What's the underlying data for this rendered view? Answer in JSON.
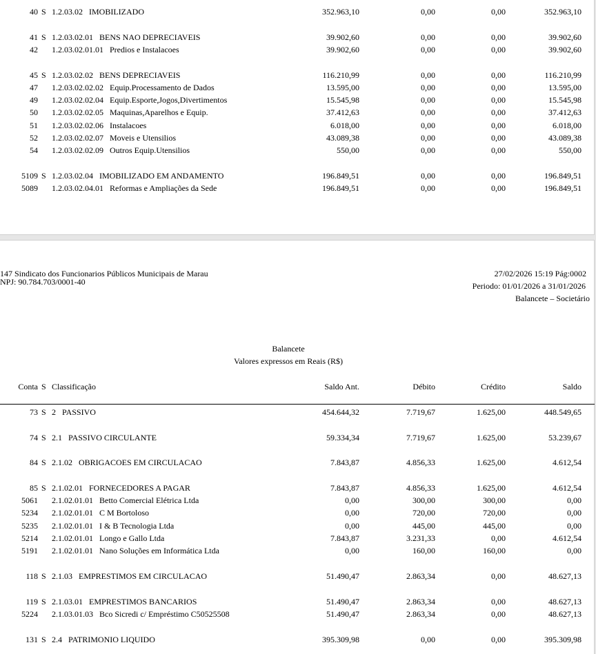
{
  "page1": {
    "rows": [
      {
        "conta": "40",
        "s": "S",
        "classificacao": "1.2.03.02",
        "descricao": "IMOBILIZADO",
        "saldo_ant": "352.963,10",
        "debito": "0,00",
        "credito": "0,00",
        "saldo": "352.963,10"
      },
      {
        "conta": "41",
        "s": "S",
        "classificacao": "1.2.03.02.01",
        "descricao": "BENS NAO DEPRECIAVEIS",
        "saldo_ant": "39.902,60",
        "debito": "0,00",
        "credito": "0,00",
        "saldo": "39.902,60"
      },
      {
        "conta": "42",
        "s": "",
        "classificacao": "1.2.03.02.01.01",
        "descricao": "Predios e Instalacoes",
        "saldo_ant": "39.902,60",
        "debito": "0,00",
        "credito": "0,00",
        "saldo": "39.902,60"
      },
      {
        "conta": "45",
        "s": "S",
        "classificacao": "1.2.03.02.02",
        "descricao": "BENS DEPRECIAVEIS",
        "saldo_ant": "116.210,99",
        "debito": "0,00",
        "credito": "0,00",
        "saldo": "116.210,99"
      },
      {
        "conta": "47",
        "s": "",
        "classificacao": "1.2.03.02.02.02",
        "descricao": "Equip.Processamento de Dados",
        "saldo_ant": "13.595,00",
        "debito": "0,00",
        "credito": "0,00",
        "saldo": "13.595,00"
      },
      {
        "conta": "49",
        "s": "",
        "classificacao": "1.2.03.02.02.04",
        "descricao": "Equip.Esporte,Jogos,Divertimentos",
        "saldo_ant": "15.545,98",
        "debito": "0,00",
        "credito": "0,00",
        "saldo": "15.545,98"
      },
      {
        "conta": "50",
        "s": "",
        "classificacao": "1.2.03.02.02.05",
        "descricao": "Maquinas,Aparelhos e Equip.",
        "saldo_ant": "37.412,63",
        "debito": "0,00",
        "credito": "0,00",
        "saldo": "37.412,63"
      },
      {
        "conta": "51",
        "s": "",
        "classificacao": "1.2.03.02.02.06",
        "descricao": "Instalacoes",
        "saldo_ant": "6.018,00",
        "debito": "0,00",
        "credito": "0,00",
        "saldo": "6.018,00"
      },
      {
        "conta": "52",
        "s": "",
        "classificacao": "1.2.03.02.02.07",
        "descricao": "Moveis e Utensilios",
        "saldo_ant": "43.089,38",
        "debito": "0,00",
        "credito": "0,00",
        "saldo": "43.089,38"
      },
      {
        "conta": "54",
        "s": "",
        "classificacao": "1.2.03.02.02.09",
        "descricao": "Outros Equip.Utensilios",
        "saldo_ant": "550,00",
        "debito": "0,00",
        "credito": "0,00",
        "saldo": "550,00"
      },
      {
        "conta": "5109",
        "s": "S",
        "classificacao": "1.2.03.02.04",
        "descricao": "IMOBILIZADO EM ANDAMENTO",
        "saldo_ant": "196.849,51",
        "debito": "0,00",
        "credito": "0,00",
        "saldo": "196.849,51"
      },
      {
        "conta": "5089",
        "s": "",
        "classificacao": "1.2.03.02.04.01",
        "descricao": "Reformas e Ampliações da Sede",
        "saldo_ant": "196.849,51",
        "debito": "0,00",
        "credito": "0,00",
        "saldo": "196.849,51"
      }
    ]
  },
  "page2": {
    "company_line": "147  Sindicato dos Funcionarios Públicos Municipais de Marau",
    "cnpj_line": "NPJ: 90.784.703/0001-40",
    "datetime_page": "27/02/2026 15:19 Pág:0002",
    "period": "Periodo: 01/01/2026 a 31/01/2026",
    "report_type": "Balancete – Societário",
    "title": "Balancete",
    "subtitle": "Valores expressos em Reais (R$)",
    "columns": {
      "conta": "Conta",
      "s": "S",
      "classificacao": "Classificação",
      "saldo_ant": "Saldo Ant.",
      "debito": "Débito",
      "credito": "Crédito",
      "saldo": "Saldo"
    },
    "rows": [
      {
        "conta": "73",
        "s": "S",
        "classificacao": "2",
        "descricao": "PASSIVO",
        "saldo_ant": "454.644,32",
        "debito": "7.719,67",
        "credito": "1.625,00",
        "saldo": "448.549,65"
      },
      {
        "conta": "74",
        "s": "S",
        "classificacao": "2.1",
        "descricao": "PASSIVO CIRCULANTE",
        "saldo_ant": "59.334,34",
        "debito": "7.719,67",
        "credito": "1.625,00",
        "saldo": "53.239,67"
      },
      {
        "conta": "84",
        "s": "S",
        "classificacao": "2.1.02",
        "descricao": "OBRIGACOES EM CIRCULACAO",
        "saldo_ant": "7.843,87",
        "debito": "4.856,33",
        "credito": "1.625,00",
        "saldo": "4.612,54"
      },
      {
        "conta": "85",
        "s": "S",
        "classificacao": "2.1.02.01",
        "descricao": "FORNECEDORES A PAGAR",
        "saldo_ant": "7.843,87",
        "debito": "4.856,33",
        "credito": "1.625,00",
        "saldo": "4.612,54"
      },
      {
        "conta": "5061",
        "s": "",
        "classificacao": "2.1.02.01.01",
        "descricao": "Betto Comercial Elétrica Ltda",
        "saldo_ant": "0,00",
        "debito": "300,00",
        "credito": "300,00",
        "saldo": "0,00"
      },
      {
        "conta": "5234",
        "s": "",
        "classificacao": "2.1.02.01.01",
        "descricao": "C M Bortoloso",
        "saldo_ant": "0,00",
        "debito": "720,00",
        "credito": "720,00",
        "saldo": "0,00"
      },
      {
        "conta": "5235",
        "s": "",
        "classificacao": "2.1.02.01.01",
        "descricao": "I & B Tecnologia Ltda",
        "saldo_ant": "0,00",
        "debito": "445,00",
        "credito": "445,00",
        "saldo": "0,00"
      },
      {
        "conta": "5214",
        "s": "",
        "classificacao": "2.1.02.01.01",
        "descricao": "Longo e Gallo Ltda",
        "saldo_ant": "7.843,87",
        "debito": "3.231,33",
        "credito": "0,00",
        "saldo": "4.612,54"
      },
      {
        "conta": "5191",
        "s": "",
        "classificacao": "2.1.02.01.01",
        "descricao": "Nano Soluções em Informática Ltda",
        "saldo_ant": "0,00",
        "debito": "160,00",
        "credito": "160,00",
        "saldo": "0,00"
      },
      {
        "conta": "118",
        "s": "S",
        "classificacao": "2.1.03",
        "descricao": "EMPRESTIMOS EM CIRCULACAO",
        "saldo_ant": "51.490,47",
        "debito": "2.863,34",
        "credito": "0,00",
        "saldo": "48.627,13"
      },
      {
        "conta": "119",
        "s": "S",
        "classificacao": "2.1.03.01",
        "descricao": "EMPRESTIMOS BANCARIOS",
        "saldo_ant": "51.490,47",
        "debito": "2.863,34",
        "credito": "0,00",
        "saldo": "48.627,13"
      },
      {
        "conta": "5224",
        "s": "",
        "classificacao": "2.1.03.01.03",
        "descricao": "Bco Sicredi c/ Empréstimo C50525508",
        "saldo_ant": "51.490,47",
        "debito": "2.863,34",
        "credito": "0,00",
        "saldo": "48.627,13"
      },
      {
        "conta": "131",
        "s": "S",
        "classificacao": "2.4",
        "descricao": "PATRIMONIO LIQUIDO",
        "saldo_ant": "395.309,98",
        "debito": "0,00",
        "credito": "0,00",
        "saldo": "395.309,98"
      }
    ]
  }
}
